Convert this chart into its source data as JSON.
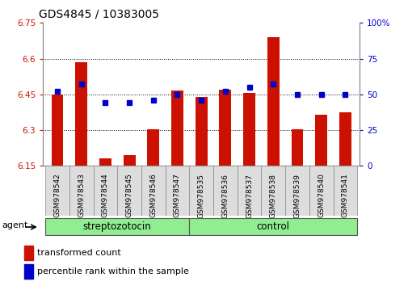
{
  "title": "GDS4845 / 10383005",
  "samples": [
    "GSM978542",
    "GSM978543",
    "GSM978544",
    "GSM978545",
    "GSM978546",
    "GSM978547",
    "GSM978535",
    "GSM978536",
    "GSM978537",
    "GSM978538",
    "GSM978539",
    "GSM978540",
    "GSM978541"
  ],
  "red_values": [
    6.45,
    6.585,
    6.18,
    6.195,
    6.305,
    6.465,
    6.44,
    6.47,
    6.455,
    6.69,
    6.305,
    6.365,
    6.375
  ],
  "blue_values": [
    52,
    57,
    44,
    44,
    46,
    50,
    46,
    52,
    55,
    57,
    50,
    50,
    50
  ],
  "ylim_left": [
    6.15,
    6.75
  ],
  "ylim_right": [
    0,
    100
  ],
  "yticks_left": [
    6.15,
    6.3,
    6.45,
    6.6,
    6.75
  ],
  "yticks_right": [
    0,
    25,
    50,
    75,
    100
  ],
  "ytick_labels_left": [
    "6.15",
    "6.3",
    "6.45",
    "6.6",
    "6.75"
  ],
  "ytick_labels_right": [
    "0",
    "25",
    "50",
    "75",
    "100%"
  ],
  "group1_label": "streptozotocin",
  "group2_label": "control",
  "group1_count": 6,
  "bar_color": "#cc1100",
  "dot_color": "#0000cc",
  "bar_width": 0.5,
  "background_color": "#ffffff",
  "grid_color": "#000000",
  "agent_label": "agent",
  "legend_red": "transformed count",
  "legend_blue": "percentile rank within the sample",
  "xtick_bg": "#dddddd",
  "group_bg": "#90ee90",
  "grid_yticks": [
    6.3,
    6.45,
    6.6
  ]
}
